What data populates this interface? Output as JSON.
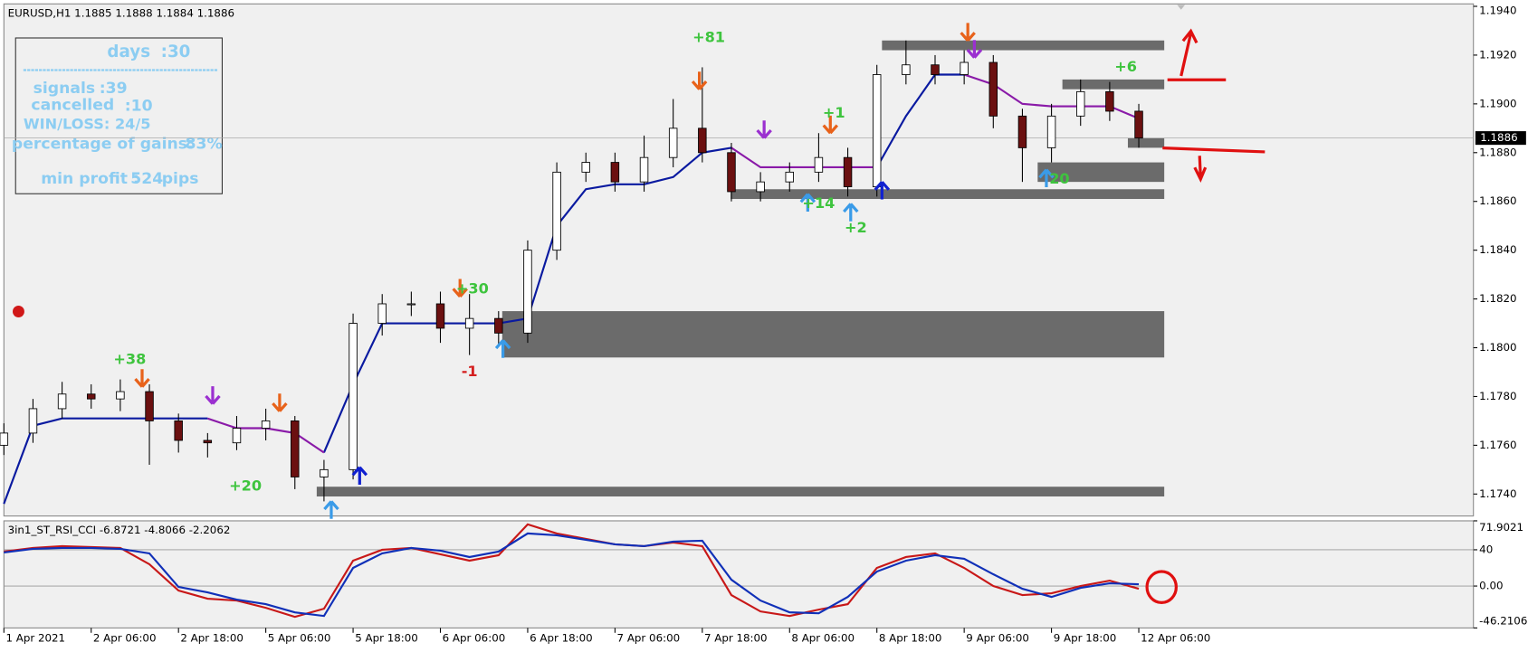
{
  "chart_data": [
    {
      "type": "candlestick",
      "title": "EURUSD,H1  1.1885 1.1888 1.1884 1.1886",
      "x": [
        0,
        4,
        8,
        12,
        16,
        20,
        24,
        28,
        32,
        36,
        40,
        44,
        48,
        52,
        56,
        60,
        64,
        68,
        72,
        76,
        80,
        84,
        88,
        92,
        96,
        100,
        104,
        108,
        112,
        116,
        120,
        124,
        128,
        132,
        136,
        140,
        144,
        148,
        152,
        156
      ],
      "open": [
        1.176,
        1.1765,
        1.1775,
        1.1781,
        1.1779,
        1.1782,
        1.177,
        1.1762,
        1.1761,
        1.1767,
        1.177,
        1.1747,
        1.175,
        1.181,
        1.1818,
        1.1818,
        1.1808,
        1.1812,
        1.1806,
        1.184,
        1.1872,
        1.1876,
        1.1868,
        1.1878,
        1.189,
        1.188,
        1.1864,
        1.1868,
        1.1872,
        1.1878,
        1.1866,
        1.1912,
        1.1916,
        1.1912,
        1.1917,
        1.1895,
        1.1882,
        1.1895,
        1.1905,
        1.1897
      ],
      "high": [
        1.1769,
        1.1779,
        1.1786,
        1.1785,
        1.1787,
        1.1785,
        1.1773,
        1.1765,
        1.1772,
        1.1775,
        1.1772,
        1.1754,
        1.1814,
        1.1822,
        1.1823,
        1.1823,
        1.1822,
        1.1815,
        1.1844,
        1.1876,
        1.188,
        1.188,
        1.1887,
        1.1902,
        1.1915,
        1.1884,
        1.1872,
        1.1876,
        1.1888,
        1.1882,
        1.1916,
        1.1926,
        1.192,
        1.1922,
        1.192,
        1.1898,
        1.19,
        1.191,
        1.1909,
        1.19
      ],
      "low": [
        1.1756,
        1.1761,
        1.1771,
        1.1775,
        1.1774,
        1.1752,
        1.1757,
        1.1755,
        1.1758,
        1.1762,
        1.1742,
        1.1737,
        1.1746,
        1.1805,
        1.1813,
        1.1802,
        1.1797,
        1.1801,
        1.1802,
        1.1836,
        1.1868,
        1.1864,
        1.1864,
        1.1874,
        1.1876,
        1.186,
        1.186,
        1.1864,
        1.1868,
        1.1862,
        1.1862,
        1.1908,
        1.1908,
        1.1908,
        1.189,
        1.1868,
        1.1876,
        1.1891,
        1.1893,
        1.1882
      ],
      "close": [
        1.1765,
        1.1775,
        1.1781,
        1.1779,
        1.1782,
        1.177,
        1.1762,
        1.1761,
        1.1767,
        1.177,
        1.1747,
        1.175,
        1.181,
        1.1818,
        1.1818,
        1.1808,
        1.1812,
        1.1806,
        1.184,
        1.1872,
        1.1876,
        1.1868,
        1.1878,
        1.189,
        1.188,
        1.1864,
        1.1868,
        1.1872,
        1.1878,
        1.1866,
        1.1912,
        1.1916,
        1.1912,
        1.1917,
        1.1895,
        1.1882,
        1.1895,
        1.1905,
        1.1897,
        1.1886
      ],
      "up_color": "#ffffff",
      "down_color": "#6b1010",
      "series": [
        {
          "color": "#0a1aa0",
          "values": [
            1.1736,
            1.1768,
            1.1771,
            1.1771,
            1.1771,
            1.1771,
            1.1771,
            1.1771,
            null,
            null,
            null,
            1.1757,
            1.1785,
            1.181,
            1.181,
            1.181,
            1.181,
            1.181,
            1.1812,
            1.185,
            1.1865,
            1.1867,
            1.1867,
            1.187,
            1.188,
            1.1882,
            null,
            null,
            null,
            null,
            1.1874,
            1.1895,
            1.1912,
            1.1912,
            null,
            null,
            null,
            null,
            null,
            null
          ]
        },
        {
          "color": "#8a1aa8",
          "values": [
            null,
            null,
            null,
            null,
            null,
            null,
            null,
            1.1771,
            1.1767,
            1.1767,
            1.1765,
            1.1757,
            null,
            null,
            null,
            null,
            null,
            null,
            null,
            null,
            null,
            null,
            null,
            null,
            null,
            1.1882,
            1.1874,
            1.1874,
            1.1874,
            1.1874,
            1.1874,
            null,
            null,
            1.1912,
            1.1908,
            1.19,
            1.1899,
            1.1899,
            1.1899,
            1.1894
          ]
        }
      ],
      "zones": [
        {
          "x0": 120.7,
          "x1": 159.5,
          "low": 1.1922,
          "high": 1.1926
        },
        {
          "x0": 145.5,
          "x1": 159.5,
          "low": 1.1906,
          "high": 1.191
        },
        {
          "x0": 142.1,
          "x1": 159.5,
          "low": 1.1868,
          "high": 1.1876
        },
        {
          "x0": 99.9,
          "x1": 159.5,
          "low": 1.1861,
          "high": 1.1865
        },
        {
          "x0": 68.5,
          "x1": 159.5,
          "low": 1.1796,
          "high": 1.1815
        },
        {
          "x0": 43,
          "x1": 159.5,
          "low": 1.1739,
          "high": 1.1743
        },
        {
          "x0": 154.5,
          "x1": 159.5,
          "low": 1.1882,
          "high": 1.1886
        }
      ],
      "zone_color": "#6b6b6b",
      "arrows": [
        {
          "x": 19.0,
          "y": 1.1784,
          "direction": "down",
          "color": "#e8621a"
        },
        {
          "x": 37.9,
          "y": 1.1774,
          "direction": "down",
          "color": "#e8621a"
        },
        {
          "x": 62.7,
          "y": 1.1821,
          "direction": "down",
          "color": "#e8621a"
        },
        {
          "x": 95.6,
          "y": 1.1906,
          "direction": "down",
          "color": "#e8621a"
        },
        {
          "x": 113.6,
          "y": 1.1888,
          "direction": "down",
          "color": "#e8621a"
        },
        {
          "x": 132.5,
          "y": 1.1926,
          "direction": "down",
          "color": "#e8621a"
        },
        {
          "x": 28.7,
          "y": 1.1777,
          "direction": "down",
          "color": "#9b30d0"
        },
        {
          "x": 104.5,
          "y": 1.1886,
          "direction": "down",
          "color": "#9b30d0"
        },
        {
          "x": 133.4,
          "y": 1.1919,
          "direction": "down",
          "color": "#9b30d0"
        },
        {
          "x": 45.0,
          "y": 1.1737,
          "direction": "up",
          "color": "#3a9be8"
        },
        {
          "x": 68.6,
          "y": 1.1803,
          "direction": "up",
          "color": "#3a9be8"
        },
        {
          "x": 110.5,
          "y": 1.1863,
          "direction": "up",
          "color": "#3a9be8"
        },
        {
          "x": 116.4,
          "y": 1.1859,
          "direction": "up",
          "color": "#3a9be8"
        },
        {
          "x": 143.3,
          "y": 1.1873,
          "direction": "up",
          "color": "#3a9be8"
        },
        {
          "x": 48.9,
          "y": 1.1751,
          "direction": "up",
          "color": "#1020d0"
        },
        {
          "x": 120.7,
          "y": 1.1868,
          "direction": "up",
          "color": "#1020d0"
        }
      ],
      "annotations": [
        {
          "text": "+38",
          "x": 17.3,
          "y": 1.1795,
          "color": "#3ec43e"
        },
        {
          "text": "+20",
          "x": 33.2,
          "y": 1.1743,
          "color": "#3ec43e"
        },
        {
          "text": "+30",
          "x": 64.4,
          "y": 1.1824,
          "color": "#3ec43e"
        },
        {
          "text": "-1",
          "x": 64.0,
          "y": 1.179,
          "color": "#d42020"
        },
        {
          "text": "+81",
          "x": 96.9,
          "y": 1.1927,
          "color": "#3ec43e"
        },
        {
          "text": "+1",
          "x": 114.1,
          "y": 1.1896,
          "color": "#3ec43e"
        },
        {
          "text": "+14",
          "x": 112.0,
          "y": 1.1859,
          "color": "#3ec43e"
        },
        {
          "text": "+2",
          "x": 117.1,
          "y": 1.1849,
          "color": "#3ec43e"
        },
        {
          "text": "+6",
          "x": 154.2,
          "y": 1.1915,
          "color": "#3ec43e"
        },
        {
          "text": "20",
          "x": 145.1,
          "y": 1.1869,
          "color": "#3ec43e"
        }
      ],
      "current_price": 1.1886,
      "xlim": [
        0,
        202
      ],
      "ylim": [
        1.1731,
        1.1941
      ],
      "yticks": [
        {
          "value": 1.174,
          "label": "1.1740"
        },
        {
          "value": 1.176,
          "label": "1.1760"
        },
        {
          "value": 1.178,
          "label": "1.1780"
        },
        {
          "value": 1.18,
          "label": "1.1800"
        },
        {
          "value": 1.182,
          "label": "1.1820"
        },
        {
          "value": 1.184,
          "label": "1.1840"
        },
        {
          "value": 1.186,
          "label": "1.1860"
        },
        {
          "value": 1.188,
          "label": "1.1880"
        },
        {
          "value": 1.19,
          "label": "1.1900"
        },
        {
          "value": 1.192,
          "label": "1.1920"
        },
        {
          "value": 1.194,
          "label": "1.1940"
        }
      ],
      "xticks": [
        {
          "value": 0,
          "label": "1 Apr 2021"
        },
        {
          "value": 12,
          "label": "2 Apr 06:00"
        },
        {
          "value": 24,
          "label": "2 Apr 18:00"
        },
        {
          "value": 36,
          "label": "5 Apr 06:00"
        },
        {
          "value": 48,
          "label": "5 Apr 18:00"
        },
        {
          "value": 60,
          "label": "6 Apr 06:00"
        },
        {
          "value": 72,
          "label": "6 Apr 18:00"
        },
        {
          "value": 84,
          "label": "7 Apr 06:00"
        },
        {
          "value": 96,
          "label": "7 Apr 18:00"
        },
        {
          "value": 108,
          "label": "8 Apr 06:00"
        },
        {
          "value": 120,
          "label": "8 Apr 18:00"
        },
        {
          "value": 132,
          "label": "9 Apr 06:00"
        },
        {
          "value": 144,
          "label": "9 Apr 18:00"
        },
        {
          "value": 156,
          "label": "12 Apr 06:00"
        }
      ]
    },
    {
      "type": "line",
      "title": "3in1_ST_RSI_CCI -6.8721 -4.8066 -2.2062",
      "x": [
        0,
        4,
        8,
        12,
        16,
        20,
        24,
        28,
        32,
        36,
        40,
        44,
        48,
        52,
        56,
        60,
        64,
        68,
        72,
        76,
        80,
        84,
        88,
        92,
        96,
        100,
        104,
        108,
        112,
        116,
        120,
        124,
        128,
        132,
        136,
        140,
        144,
        148,
        152,
        156
      ],
      "series": [
        {
          "color": "#c81818",
          "values": [
            38,
            42,
            44,
            43,
            42,
            24,
            -5,
            -14,
            -16,
            -24,
            -34,
            -25,
            28,
            40,
            42,
            35,
            28,
            34,
            68,
            58,
            52,
            46,
            44,
            48,
            44,
            -10,
            -28,
            -33,
            -26,
            -20,
            20,
            32,
            36,
            20,
            0,
            -10,
            -8,
            0,
            6,
            -3
          ]
        },
        {
          "color": "#1030b8",
          "values": [
            37,
            41,
            42,
            42,
            41,
            36,
            -1,
            -7,
            -15,
            -20,
            -29,
            -33,
            20,
            36,
            42,
            39,
            32,
            38,
            58,
            56,
            51,
            46,
            44,
            49,
            50,
            7,
            -16,
            -29,
            -30,
            -12,
            16,
            28,
            34,
            30,
            13,
            -3,
            -12,
            -2,
            3,
            2
          ]
        }
      ],
      "xlim": [
        0,
        202
      ],
      "ylim": [
        -46.2106,
        71.9021
      ],
      "yticks": [
        -46.2106,
        {
          "value": 0,
          "label": "0.00"
        },
        40,
        71.9021
      ]
    }
  ],
  "info_panel": {
    "days": "days",
    "days_value": ":30",
    "signals": "signals",
    "signals_value": ":39",
    "cancelled": "cancelled",
    "cancelled_value": ":10",
    "win_loss": "WIN/LOSS: 24/5",
    "gains": "percentage of gains:",
    "gains_value": "83%",
    "min_profit": "min profit :",
    "min_profit_value": "524",
    "pips": "pips"
  }
}
